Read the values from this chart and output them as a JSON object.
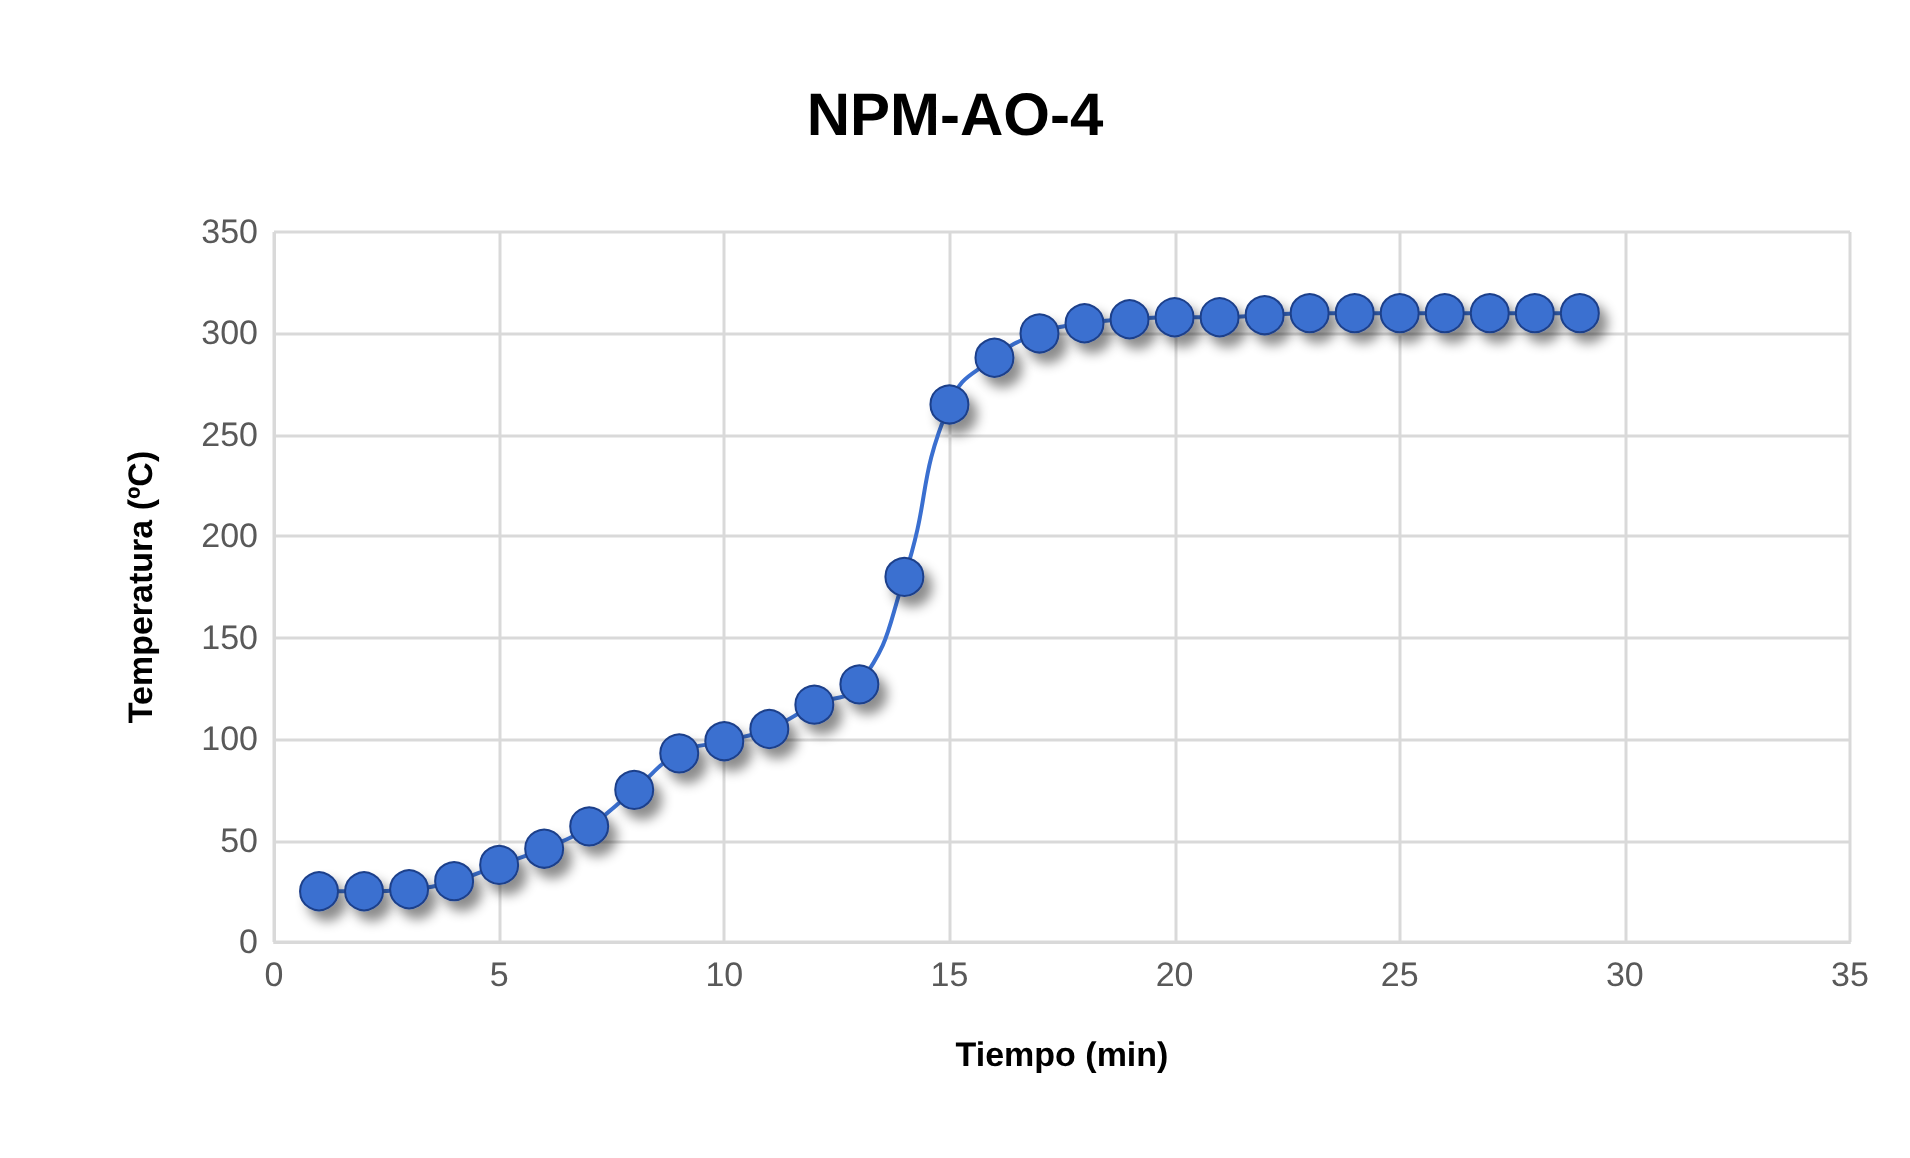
{
  "chart_data": {
    "type": "line",
    "title": "NPM-AO-4",
    "xlabel": "Tiempo (min)",
    "ylabel": "Temperatura (ºC)",
    "x": [
      1,
      2,
      3,
      4,
      5,
      6,
      7,
      8,
      9,
      10,
      11,
      12,
      13,
      14,
      15,
      16,
      17,
      18,
      19,
      20,
      21,
      22,
      23,
      24,
      25,
      26,
      27,
      28,
      29
    ],
    "series": [
      {
        "color": "#3a6fd0",
        "values": [
          25,
          25,
          26,
          30,
          38,
          46,
          57,
          75,
          93,
          99,
          105,
          117,
          127,
          180,
          265,
          288,
          300,
          305,
          307,
          308,
          308,
          309,
          310,
          310,
          310,
          310,
          310,
          310,
          310
        ]
      }
    ],
    "xlim": [
      0,
      35
    ],
    "xticks": [
      0,
      5,
      10,
      15,
      20,
      25,
      30,
      35
    ],
    "ylim": [
      0,
      350
    ],
    "yticks": [
      0,
      50,
      100,
      150,
      200,
      250,
      300,
      350
    ],
    "grid": true,
    "marker": "circle",
    "line_style": "solid"
  }
}
